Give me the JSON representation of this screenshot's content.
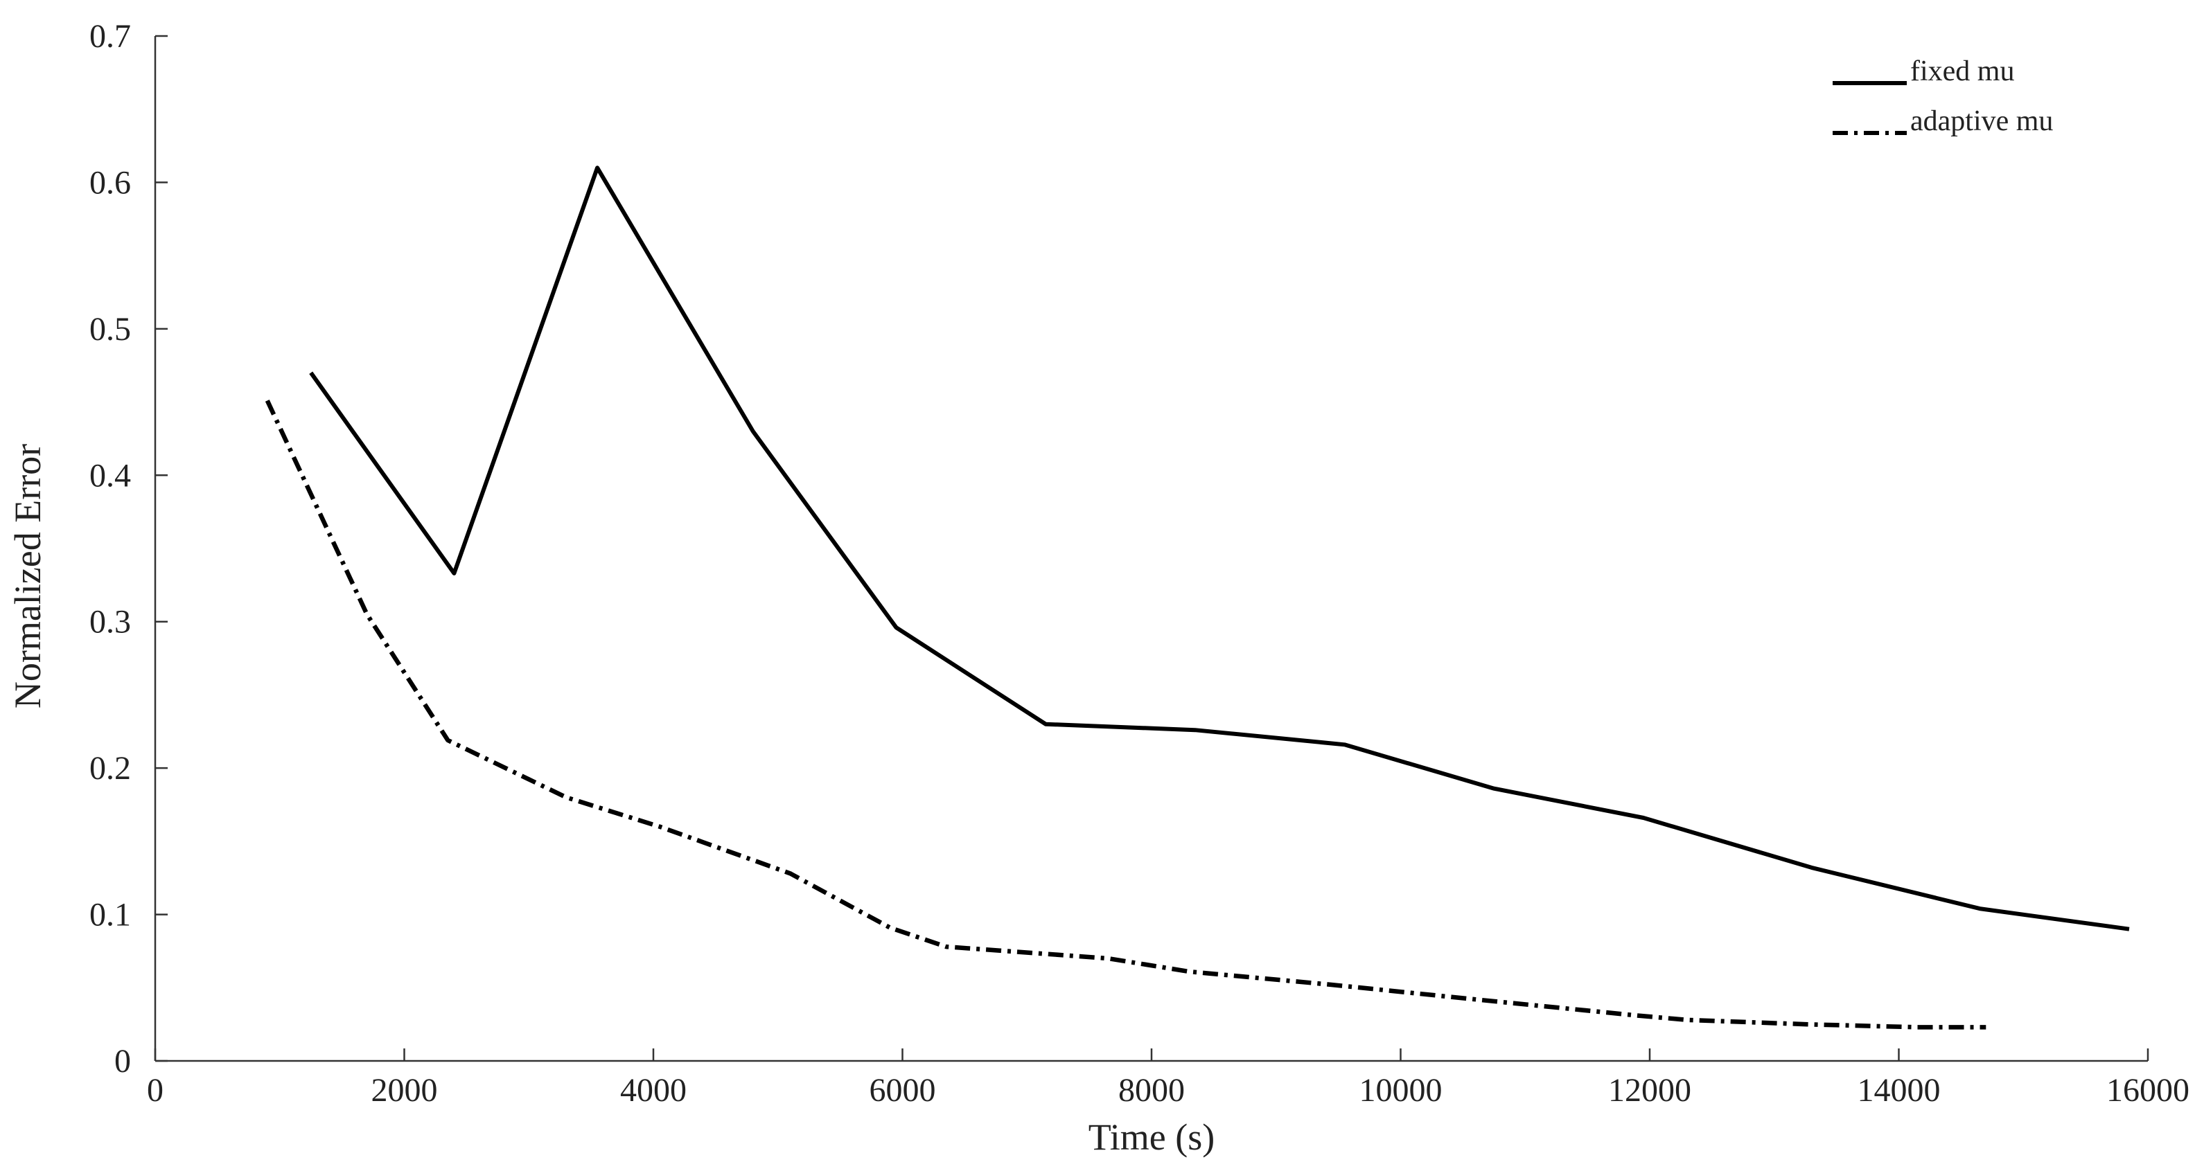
{
  "chart_data": {
    "type": "line",
    "title": "",
    "xlabel": "Time (s)",
    "ylabel": "Normalized Error",
    "xlim": [
      0,
      16000
    ],
    "ylim": [
      0,
      0.7
    ],
    "x_ticks": [
      "0",
      "2000",
      "4000",
      "6000",
      "8000",
      "10000",
      "12000",
      "14000",
      "16000"
    ],
    "y_ticks": [
      "0",
      "0.1",
      "0.2",
      "0.3",
      "0.4",
      "0.5",
      "0.6",
      "0.7"
    ],
    "grid": false,
    "legend_position": "top-right",
    "series": [
      {
        "name": "fixed mu",
        "style": "solid",
        "color": "#000000",
        "x": [
          1250,
          2400,
          3550,
          4800,
          5950,
          7150,
          8350,
          9550,
          10750,
          11950,
          13300,
          14650,
          15850
        ],
        "y": [
          0.47,
          0.333,
          0.61,
          0.43,
          0.296,
          0.23,
          0.226,
          0.216,
          0.186,
          0.166,
          0.132,
          0.104,
          0.09
        ]
      },
      {
        "name": "adaptive mu",
        "style": "dash-dot",
        "color": "#000000",
        "x": [
          900,
          1700,
          2350,
          3300,
          4050,
          5100,
          5900,
          6350,
          7650,
          8300,
          9450,
          10600,
          11900,
          12300,
          13250,
          14150,
          14700
        ],
        "y": [
          0.451,
          0.305,
          0.219,
          0.18,
          0.16,
          0.128,
          0.091,
          0.078,
          0.07,
          0.061,
          0.052,
          0.042,
          0.031,
          0.028,
          0.025,
          0.023,
          0.023
        ]
      }
    ]
  }
}
